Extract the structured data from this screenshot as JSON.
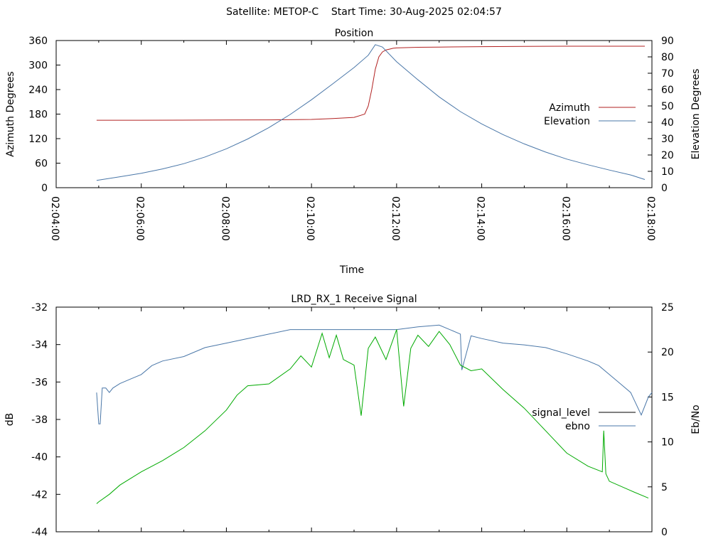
{
  "header": "Satellite: METOP-C    Start Time: 30-Aug-2025 02:04:57",
  "chart_data": [
    {
      "type": "line",
      "title": "Position",
      "xlabel": "Time",
      "ylabel": "Azimuth Degrees",
      "y2label": "Elevation Degrees",
      "xlim": [
        "02:04:00",
        "02:18:00"
      ],
      "ylim": [
        0,
        360
      ],
      "y2lim": [
        0,
        90
      ],
      "xticks": [
        "02:04:00",
        "02:06:00",
        "02:08:00",
        "02:10:00",
        "02:12:00",
        "02:14:00",
        "02:16:00",
        "02:18:00"
      ],
      "yticks": [
        "0",
        "60",
        "120",
        "180",
        "240",
        "300",
        "360"
      ],
      "y2ticks": [
        "0",
        "10",
        "20",
        "30",
        "40",
        "50",
        "60",
        "70",
        "80",
        "90"
      ],
      "legend": "right",
      "grid": false,
      "series": [
        {
          "name": "Azimuth",
          "axis": "y",
          "color": "#b22222",
          "x": [
            "02:04:57",
            "02:06:00",
            "02:08:00",
            "02:09:00",
            "02:10:00",
            "02:10:30",
            "02:11:00",
            "02:11:15",
            "02:11:20",
            "02:11:25",
            "02:11:30",
            "02:11:35",
            "02:11:40",
            "02:11:45",
            "02:11:50",
            "02:11:55",
            "02:12:00",
            "02:12:30",
            "02:13:00",
            "02:14:00",
            "02:15:00",
            "02:16:00",
            "02:17:50"
          ],
          "values": [
            165,
            165,
            165.5,
            166,
            167,
            169,
            172,
            180,
            200,
            240,
            290,
            320,
            332,
            337,
            339,
            341,
            342,
            343.5,
            344,
            345,
            345.5,
            346,
            346
          ]
        },
        {
          "name": "Elevation",
          "axis": "y2",
          "color": "#4a77a8",
          "x": [
            "02:04:57",
            "02:05:30",
            "02:06:00",
            "02:06:30",
            "02:07:00",
            "02:07:30",
            "02:08:00",
            "02:08:30",
            "02:09:00",
            "02:09:30",
            "02:10:00",
            "02:10:30",
            "02:11:00",
            "02:11:20",
            "02:11:30",
            "02:11:40",
            "02:12:00",
            "02:12:30",
            "02:13:00",
            "02:13:30",
            "02:14:00",
            "02:14:30",
            "02:15:00",
            "02:15:30",
            "02:16:00",
            "02:16:30",
            "02:17:00",
            "02:17:30",
            "02:17:50"
          ],
          "values": [
            4.5,
            6.7,
            8.8,
            11.5,
            14.7,
            18.8,
            23.8,
            29.8,
            36.8,
            44.8,
            53.8,
            63.5,
            73.5,
            81,
            87.5,
            86,
            77,
            66,
            55.5,
            46.5,
            39,
            32.5,
            26.8,
            21.8,
            17.5,
            14,
            10.8,
            7.8,
            5
          ]
        }
      ]
    },
    {
      "type": "line",
      "title": "LRD_RX_1 Receive Signal",
      "xlabel": "",
      "ylabel": "dB",
      "y2label": "Eb/No",
      "xlim": [
        "02:04:00",
        "02:18:00"
      ],
      "ylim": [
        -44,
        -32
      ],
      "y2lim": [
        0,
        25
      ],
      "yticks": [
        "-44",
        "-42",
        "-40",
        "-38",
        "-36",
        "-34",
        "-32"
      ],
      "y2ticks": [
        "0",
        "5",
        "10",
        "15",
        "20",
        "25"
      ],
      "legend": "right",
      "grid": false,
      "series": [
        {
          "name": "signal_level",
          "axis": "y",
          "color": "#000000",
          "x": [],
          "values": []
        },
        {
          "name": "ebno",
          "axis": "y2",
          "color": "#4a77a8",
          "x": [
            "02:04:57",
            "02:05:00",
            "02:05:02",
            "02:05:05",
            "02:05:10",
            "02:05:15",
            "02:05:20",
            "02:05:30",
            "02:05:45",
            "02:06:00",
            "02:06:15",
            "02:06:30",
            "02:07:00",
            "02:07:30",
            "02:08:00",
            "02:08:30",
            "02:09:00",
            "02:09:30",
            "02:10:00",
            "02:10:30",
            "02:11:00",
            "02:11:30",
            "02:11:45",
            "02:12:00",
            "02:12:30",
            "02:13:00",
            "02:13:30",
            "02:13:32",
            "02:13:45",
            "02:14:00",
            "02:14:30",
            "02:15:00",
            "02:15:30",
            "02:16:00",
            "02:16:30",
            "02:16:45",
            "02:17:00",
            "02:17:15",
            "02:17:30",
            "02:17:45",
            "02:17:55",
            "02:18:00"
          ],
          "values": [
            15.5,
            12,
            12,
            16,
            16,
            15.5,
            16,
            16.5,
            17,
            17.5,
            18.5,
            19,
            19.5,
            20.5,
            21,
            21.5,
            22,
            22.5,
            22.5,
            22.5,
            22.5,
            22.5,
            22.5,
            22.5,
            22.8,
            23,
            22,
            18,
            21.8,
            21.5,
            21,
            20.8,
            20.5,
            19.8,
            19,
            18.5,
            17.5,
            16.5,
            15.5,
            13,
            15,
            15.5
          ]
        },
        {
          "name": "",
          "axis": "y",
          "color": "#00aa00",
          "x": [
            "02:04:57",
            "02:05:00",
            "02:05:15",
            "02:05:30",
            "02:06:00",
            "02:06:30",
            "02:07:00",
            "02:07:30",
            "02:08:00",
            "02:08:15",
            "02:08:30",
            "02:09:00",
            "02:09:30",
            "02:09:45",
            "02:10:00",
            "02:10:15",
            "02:10:25",
            "02:10:35",
            "02:10:45",
            "02:11:00",
            "02:11:10",
            "02:11:20",
            "02:11:30",
            "02:11:45",
            "02:12:00",
            "02:12:10",
            "02:12:20",
            "02:12:30",
            "02:12:45",
            "02:13:00",
            "02:13:15",
            "02:13:30",
            "02:13:45",
            "02:14:00",
            "02:14:30",
            "02:15:00",
            "02:15:30",
            "02:16:00",
            "02:16:30",
            "02:16:50",
            "02:16:52",
            "02:16:55",
            "02:17:00",
            "02:17:30",
            "02:17:55"
          ],
          "values": [
            -42.5,
            -42.4,
            -42,
            -41.5,
            -40.8,
            -40.2,
            -39.5,
            -38.6,
            -37.5,
            -36.7,
            -36.2,
            -36.1,
            -35.3,
            -34.6,
            -35.2,
            -33.4,
            -34.7,
            -33.5,
            -34.8,
            -35.1,
            -37.8,
            -34.2,
            -33.6,
            -34.8,
            -33.2,
            -37.3,
            -34.2,
            -33.5,
            -34.1,
            -33.3,
            -34,
            -35.1,
            -35.4,
            -35.3,
            -36.4,
            -37.4,
            -38.6,
            -39.8,
            -40.5,
            -40.8,
            -38.6,
            -40.9,
            -41.3,
            -41.8,
            -42.2
          ]
        }
      ]
    }
  ]
}
